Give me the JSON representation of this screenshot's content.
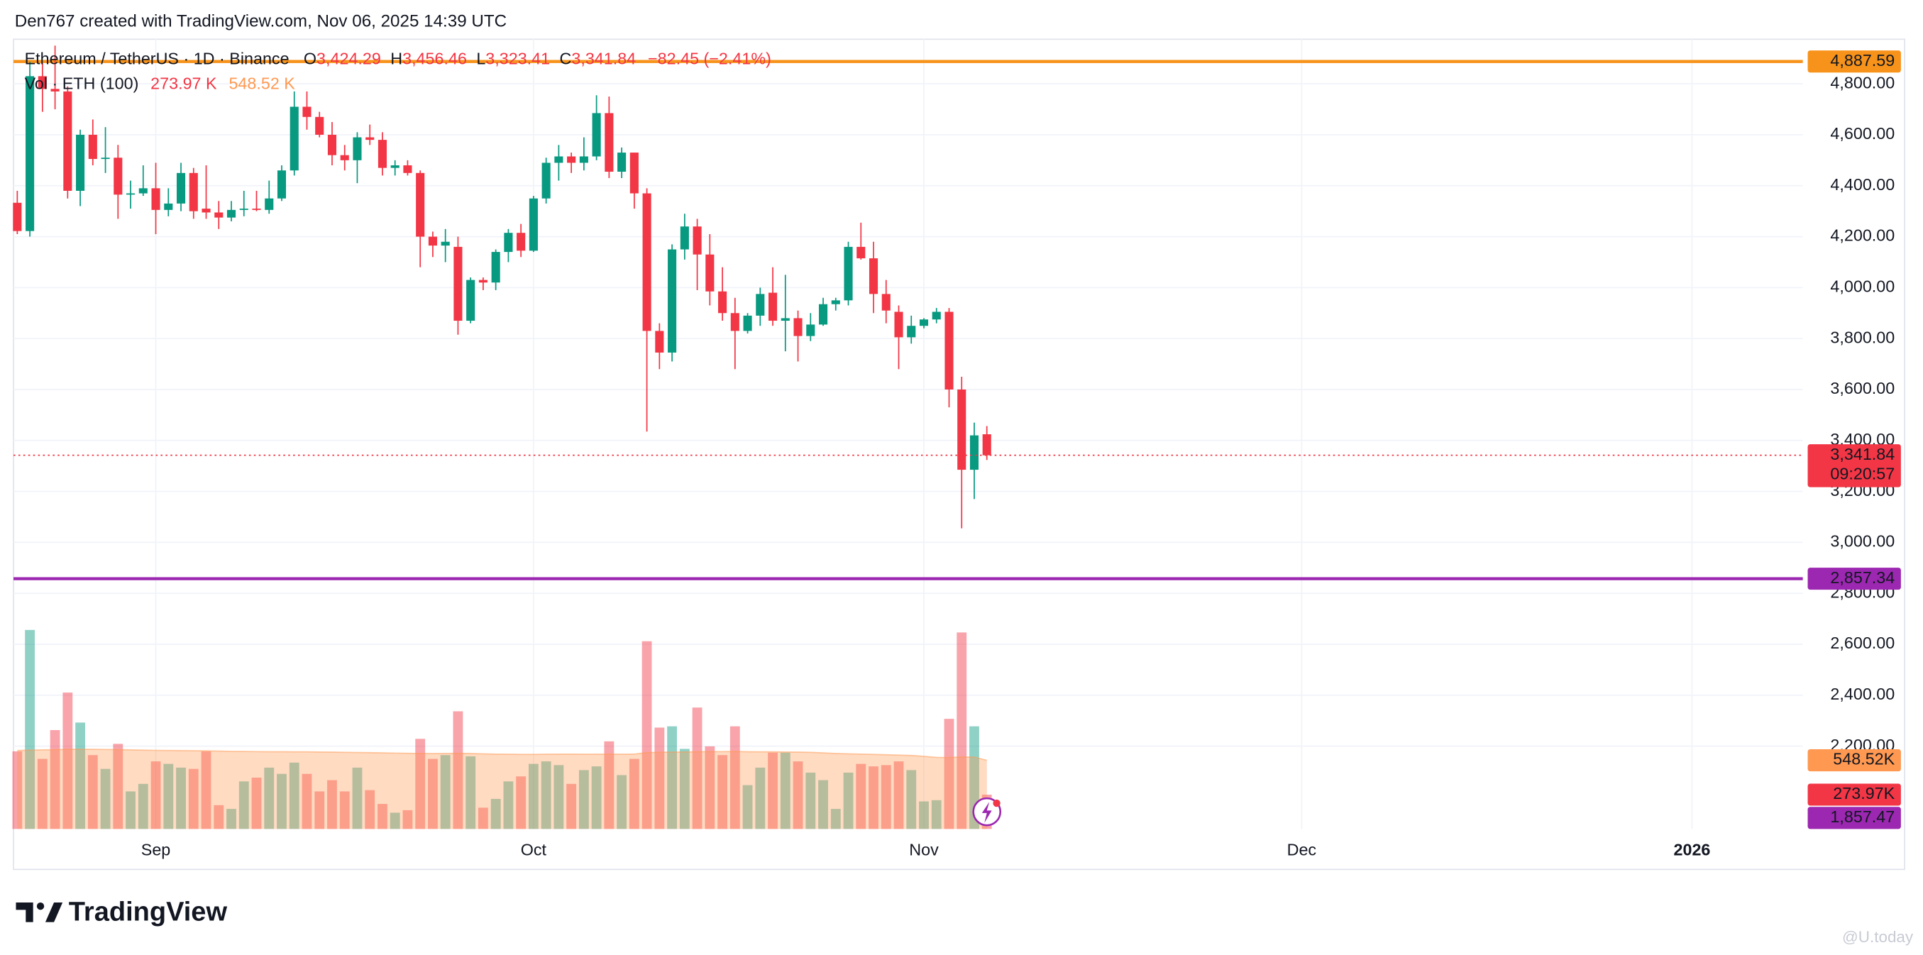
{
  "header": "Den767 created with TradingView.com, Nov 06, 2025 14:39 UTC",
  "chart_data": {
    "type": "candlestick",
    "title": "Ethereum / TetherUS · 1D · Binance",
    "ohlc_names": [
      "O",
      "H",
      "L",
      "C"
    ],
    "ohlc_labels": [
      "3,424.29",
      "3,456.46",
      "3,323.41",
      "3,341.84"
    ],
    "change": "−82.45 (−2.41%)",
    "categories": [
      null,
      null,
      null,
      null,
      null,
      null,
      null,
      null,
      null,
      null,
      null,
      null,
      null,
      null,
      null,
      null,
      null,
      null,
      null,
      null,
      null,
      null,
      null,
      null,
      null,
      null,
      null,
      null,
      null,
      null,
      null,
      null,
      null,
      null,
      null,
      null,
      null,
      null,
      null,
      null,
      null,
      null,
      null,
      null,
      null,
      null,
      null,
      null,
      null,
      null,
      null,
      null,
      null,
      null,
      null,
      null,
      null,
      null,
      null,
      null,
      null,
      null,
      null,
      null,
      null,
      null,
      null,
      null,
      null,
      null,
      null,
      null,
      null,
      null,
      null,
      null,
      null,
      null
    ],
    "open": [
      4333,
      4222,
      4830,
      4780,
      4770,
      4380,
      4600,
      4505,
      4510,
      4365,
      4370,
      4390,
      4305,
      4330,
      4450,
      4310,
      4295,
      4275,
      4305,
      4310,
      4305,
      4350,
      4460,
      4710,
      4670,
      4600,
      4520,
      4500,
      4590,
      4580,
      4470,
      4480,
      4450,
      4200,
      4165,
      4160,
      3870,
      4030,
      4020,
      4140,
      4215,
      4145,
      4350,
      4490,
      4515,
      4490,
      4515,
      4685,
      4455,
      4530,
      4370,
      3830,
      3745,
      4150,
      4240,
      4130,
      3985,
      3900,
      3830,
      3890,
      3980,
      3870,
      3880,
      3810,
      3855,
      3935,
      3950,
      4160,
      4115,
      3975,
      3905,
      3805,
      3850,
      3875,
      3905,
      3600,
      3285,
      3424.29
    ],
    "high": [
      4380,
      4887,
      4880,
      4950,
      4790,
      4620,
      4660,
      4630,
      4560,
      4420,
      4480,
      4490,
      4390,
      4490,
      4470,
      4480,
      4340,
      4340,
      4380,
      4380,
      4420,
      4480,
      4770,
      4770,
      4690,
      4650,
      4560,
      4610,
      4640,
      4610,
      4500,
      4500,
      4460,
      4220,
      4230,
      4200,
      4040,
      4040,
      4150,
      4230,
      4250,
      4360,
      4510,
      4560,
      4530,
      4590,
      4755,
      4750,
      4550,
      4530,
      4390,
      3860,
      4170,
      4290,
      4270,
      4210,
      4080,
      3960,
      3900,
      4000,
      4080,
      4050,
      3910,
      3900,
      3960,
      3960,
      4180,
      4255,
      4180,
      4030,
      3930,
      3890,
      3880,
      3920,
      3920,
      3650,
      3470,
      3456.46
    ],
    "low": [
      4210,
      4200,
      4690,
      4700,
      4350,
      4320,
      4480,
      4450,
      4270,
      4310,
      4360,
      4210,
      4280,
      4300,
      4270,
      4270,
      4230,
      4260,
      4280,
      4300,
      4290,
      4340,
      4440,
      4620,
      4590,
      4480,
      4460,
      4410,
      4560,
      4440,
      4440,
      4440,
      4080,
      4120,
      4100,
      3815,
      3860,
      3990,
      3990,
      4100,
      4120,
      4140,
      4330,
      4420,
      4450,
      4460,
      4500,
      4430,
      4430,
      4310,
      3435,
      3680,
      3710,
      4110,
      3990,
      3930,
      3870,
      3680,
      3820,
      3850,
      3850,
      3750,
      3710,
      3790,
      3850,
      3910,
      3930,
      4110,
      3900,
      3860,
      3680,
      3780,
      3840,
      3860,
      3530,
      3055,
      3170,
      3323.41
    ],
    "close": [
      4222,
      4830,
      4780,
      4770,
      4380,
      4600,
      4505,
      4510,
      4365,
      4370,
      4390,
      4305,
      4330,
      4450,
      4300,
      4295,
      4275,
      4305,
      4310,
      4305,
      4350,
      4460,
      4710,
      4670,
      4600,
      4520,
      4500,
      4590,
      4580,
      4470,
      4480,
      4450,
      4200,
      4165,
      4180,
      3870,
      4030,
      4020,
      4140,
      4215,
      4145,
      4350,
      4490,
      4515,
      4490,
      4515,
      4685,
      4455,
      4530,
      4370,
      3830,
      3745,
      4150,
      4240,
      4130,
      3985,
      3900,
      3830,
      3890,
      3975,
      3870,
      3880,
      3810,
      3855,
      3935,
      3950,
      4160,
      4115,
      3975,
      3910,
      3805,
      3850,
      3875,
      3905,
      3600,
      3285,
      3420,
      3341.84
    ],
    "up_color": "#089981",
    "down_color": "#f23645",
    "xlim": [
      -0.3,
      141.8
    ],
    "xticks": [
      {
        "value": 11,
        "label": "Sep"
      },
      {
        "value": 41,
        "label": "Oct"
      },
      {
        "value": 72,
        "label": "Nov"
      },
      {
        "value": 102,
        "label": "Dec"
      },
      {
        "value": 133,
        "label": "2026"
      }
    ],
    "ylim": [
      1875,
      4975
    ],
    "yticks": [
      {
        "value": 2200,
        "label": "2,200.00"
      },
      {
        "value": 2400,
        "label": "2,400.00"
      },
      {
        "value": 2600,
        "label": "2,600.00"
      },
      {
        "value": 2800,
        "label": "2,800.00"
      },
      {
        "value": 3000,
        "label": "3,000.00"
      },
      {
        "value": 3200,
        "label": "3,200.00"
      },
      {
        "value": 3400,
        "label": "3,400.00"
      },
      {
        "value": 3600,
        "label": "3,600.00"
      },
      {
        "value": 3800,
        "label": "3,800.00"
      },
      {
        "value": 4000,
        "label": "4,000.00"
      },
      {
        "value": 4200,
        "label": "4,200.00"
      },
      {
        "value": 4400,
        "label": "4,400.00"
      },
      {
        "value": 4600,
        "label": "4,600.00"
      },
      {
        "value": 4800,
        "label": "4,800.00"
      }
    ],
    "grid": true,
    "volume": {
      "name": "Vol · ETH (100)",
      "legend_value": "273.97 K",
      "value_label": "273.97K",
      "vlim": [
        0,
        6310
      ],
      "values": [
        620,
        1590,
        560,
        790,
        1090,
        850,
        590,
        480,
        680,
        300,
        360,
        540,
        520,
        490,
        480,
        620,
        190,
        160,
        380,
        410,
        490,
        440,
        530,
        440,
        300,
        390,
        300,
        490,
        310,
        200,
        130,
        150,
        720,
        560,
        590,
        940,
        580,
        170,
        240,
        380,
        420,
        520,
        540,
        510,
        360,
        470,
        500,
        700,
        430,
        560,
        1500,
        810,
        820,
        640,
        970,
        660,
        590,
        820,
        350,
        490,
        610,
        610,
        540,
        450,
        390,
        160,
        450,
        520,
        500,
        510,
        540,
        470,
        220,
        230,
        880,
        1570,
        820,
        273.97
      ]
    },
    "volume_ma": {
      "color": "#ff9850",
      "legend_value": "548.52 K",
      "value_label": "548.52K",
      "values": [
        627,
        630,
        632,
        633,
        636,
        637,
        636,
        635,
        634,
        632,
        630,
        628,
        627,
        626,
        625,
        624,
        622,
        620,
        619,
        618,
        617,
        617,
        616,
        616,
        615,
        614,
        612,
        611,
        610,
        608,
        606,
        604,
        603,
        602,
        603,
        604,
        603,
        600,
        598,
        597,
        596,
        596,
        597,
        598,
        598,
        597,
        597,
        598,
        597,
        598,
        610,
        612,
        614,
        615,
        617,
        618,
        618,
        619,
        617,
        616,
        616,
        615,
        614,
        612,
        608,
        603,
        600,
        598,
        596,
        593,
        590,
        587,
        580,
        572,
        570,
        575,
        574,
        548.52
      ]
    },
    "hlines": [
      {
        "value": 4887.59,
        "label": "4,887.59",
        "color": "#f7931a"
      },
      {
        "value": 2857.34,
        "label": "2,857.34",
        "color": "#9c27b0"
      }
    ],
    "last_price": {
      "value": 3341.84,
      "label": "3,341.84",
      "countdown": "09:20:57",
      "color": "#f23645"
    },
    "indicator": {
      "value": 1857.47,
      "label": "1,857.47",
      "color": "#9c27b0"
    }
  },
  "footer": {
    "brand": "TradingView",
    "watermark": "@U.today"
  }
}
